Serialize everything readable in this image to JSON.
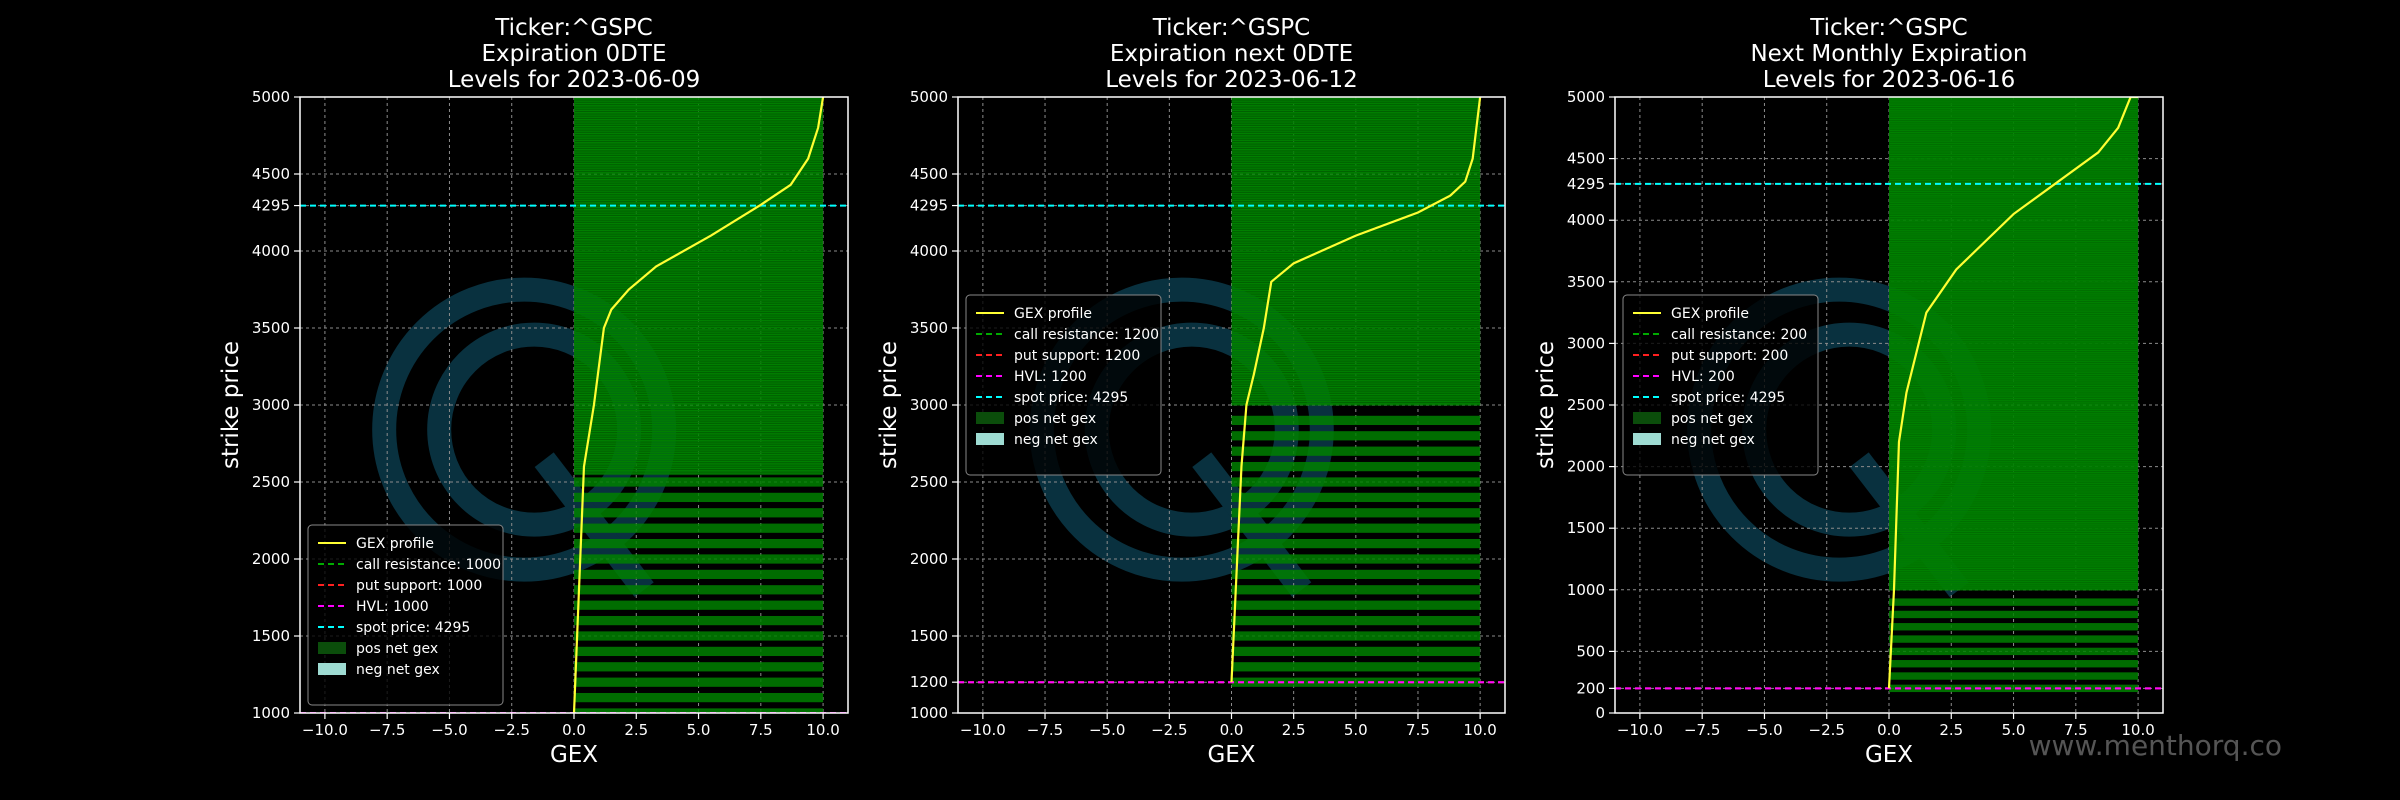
{
  "watermark": "www.menthorq.co",
  "colors": {
    "background": "#000000",
    "pos_bar": "#008000",
    "neg_bar": "#9edbd2",
    "profile": "#ffff33",
    "call_resistance": "#00aa00",
    "put_support": "#ff2020",
    "hvl": "#ff00ff",
    "spot": "#00ffff",
    "grid": "#8c8c8c",
    "logo": "#0b3a4a"
  },
  "chart_data": [
    {
      "type": "bar",
      "orientation": "horizontal",
      "title": [
        "Ticker:^GSPC",
        "Expiration 0DTE",
        "Levels for 2023-06-09"
      ],
      "xlabel": "GEX",
      "ylabel": "strike price",
      "xlim": [
        -11,
        11
      ],
      "ylim": [
        1000,
        5000
      ],
      "xticks": [
        -10.0,
        -7.5,
        -5.0,
        -2.5,
        0.0,
        2.5,
        5.0,
        7.5,
        10.0
      ],
      "xtick_labels": [
        "−10.0",
        "−7.5",
        "−5.0",
        "−2.5",
        "0.0",
        "2.5",
        "5.0",
        "7.5",
        "10.0"
      ],
      "yticks": [
        1000,
        1500,
        2000,
        2500,
        3000,
        3500,
        4000,
        4295,
        4500,
        5000
      ],
      "ytick_labels": [
        "1000",
        "1500",
        "2000",
        "2500",
        "3000",
        "3500",
        "4000",
        "4295",
        "4500",
        "5000"
      ],
      "grid": true,
      "legend_position": "lower-left",
      "levels": {
        "call_resistance": 1000,
        "put_support": 1000,
        "hvl": 1000,
        "spot": 4295
      },
      "bars": {
        "value": 10,
        "dense_from": 2550,
        "dense_to": 5000,
        "dense_step": 5,
        "sparse_from": 1000,
        "sparse_to": 2500,
        "sparse_step": 100
      },
      "profile": {
        "gex": [
          0,
          0.4,
          0.8,
          1.2,
          1.5,
          2.2,
          3.3,
          5.5,
          7.5,
          8.7,
          9.4,
          9.8,
          10.0
        ],
        "strike": [
          1000,
          2600,
          3000,
          3500,
          3620,
          3750,
          3900,
          4100,
          4300,
          4430,
          4600,
          4800,
          5000
        ]
      },
      "legend": [
        "GEX profile",
        "call resistance: 1000",
        "put support: 1000",
        "HVL: 1000",
        "spot price: 4295",
        "pos net gex",
        "neg net gex"
      ]
    },
    {
      "type": "bar",
      "orientation": "horizontal",
      "title": [
        "Ticker:^GSPC",
        "Expiration next 0DTE",
        "Levels for 2023-06-12"
      ],
      "xlabel": "GEX",
      "ylabel": "strike price",
      "xlim": [
        -11,
        11
      ],
      "ylim": [
        1000,
        5000
      ],
      "xticks": [
        -10.0,
        -7.5,
        -5.0,
        -2.5,
        0.0,
        2.5,
        5.0,
        7.5,
        10.0
      ],
      "xtick_labels": [
        "−10.0",
        "−7.5",
        "−5.0",
        "−2.5",
        "0.0",
        "2.5",
        "5.0",
        "7.5",
        "10.0"
      ],
      "yticks": [
        1000,
        1200,
        1500,
        2000,
        2500,
        3000,
        3500,
        4000,
        4295,
        4500,
        5000
      ],
      "ytick_labels": [
        "1000",
        "1200",
        "1500",
        "2000",
        "2500",
        "3000",
        "3500",
        "4000",
        "4295",
        "4500",
        "5000"
      ],
      "grid": true,
      "legend_position": "center-left",
      "levels": {
        "call_resistance": 1200,
        "put_support": 1200,
        "hvl": 1200,
        "spot": 4295
      },
      "bars": {
        "value": 10,
        "dense_from": 3000,
        "dense_to": 5000,
        "dense_step": 5,
        "sparse_from": 1200,
        "sparse_to": 2950,
        "sparse_step": 100
      },
      "profile": {
        "gex": [
          0,
          0.4,
          0.6,
          0.9,
          1.3,
          1.6,
          2.5,
          5.0,
          7.5,
          8.8,
          9.4,
          9.7,
          10.0
        ],
        "strike": [
          1200,
          2600,
          3000,
          3200,
          3500,
          3800,
          3920,
          4100,
          4250,
          4360,
          4450,
          4600,
          5000
        ]
      },
      "legend": [
        "GEX profile",
        "call resistance: 1200",
        "put support: 1200",
        "HVL: 1200",
        "spot price: 4295",
        "pos net gex",
        "neg net gex"
      ]
    },
    {
      "type": "bar",
      "orientation": "horizontal",
      "title": [
        "Ticker:^GSPC",
        "Next Monthly Expiration",
        "Levels for 2023-06-16"
      ],
      "xlabel": "GEX",
      "ylabel": "strike price",
      "xlim": [
        -11,
        11
      ],
      "ylim": [
        0,
        5000
      ],
      "xticks": [
        -10.0,
        -7.5,
        -5.0,
        -2.5,
        0.0,
        2.5,
        5.0,
        7.5,
        10.0
      ],
      "xtick_labels": [
        "−10.0",
        "−7.5",
        "−5.0",
        "−2.5",
        "0.0",
        "2.5",
        "5.0",
        "7.5",
        "10.0"
      ],
      "yticks": [
        0,
        200,
        500,
        1000,
        1500,
        2000,
        2500,
        3000,
        3500,
        4000,
        4295,
        4500,
        5000
      ],
      "ytick_labels": [
        "0",
        "200",
        "500",
        "1000",
        "1500",
        "2000",
        "2500",
        "3000",
        "3500",
        "4000",
        "4295",
        "4500",
        "5000"
      ],
      "grid": true,
      "legend_position": "center-left",
      "levels": {
        "call_resistance": 200,
        "put_support": 200,
        "hvl": 200,
        "spot": 4295
      },
      "bars": {
        "value": 10,
        "dense_from": 1000,
        "dense_to": 5000,
        "dense_step": 5,
        "sparse_from": 200,
        "sparse_to": 950,
        "sparse_step": 100
      },
      "profile": {
        "gex": [
          0,
          0.2,
          0.4,
          0.7,
          1.5,
          2.7,
          5.0,
          8.4,
          9.2,
          9.7,
          10.0
        ],
        "strike": [
          200,
          1000,
          2200,
          2600,
          3250,
          3600,
          4050,
          4550,
          4750,
          5000,
          5000
        ]
      },
      "legend": [
        "GEX profile",
        "call resistance: 200",
        "put support: 200",
        "HVL: 200",
        "spot price: 4295",
        "pos net gex",
        "neg net gex"
      ]
    }
  ]
}
